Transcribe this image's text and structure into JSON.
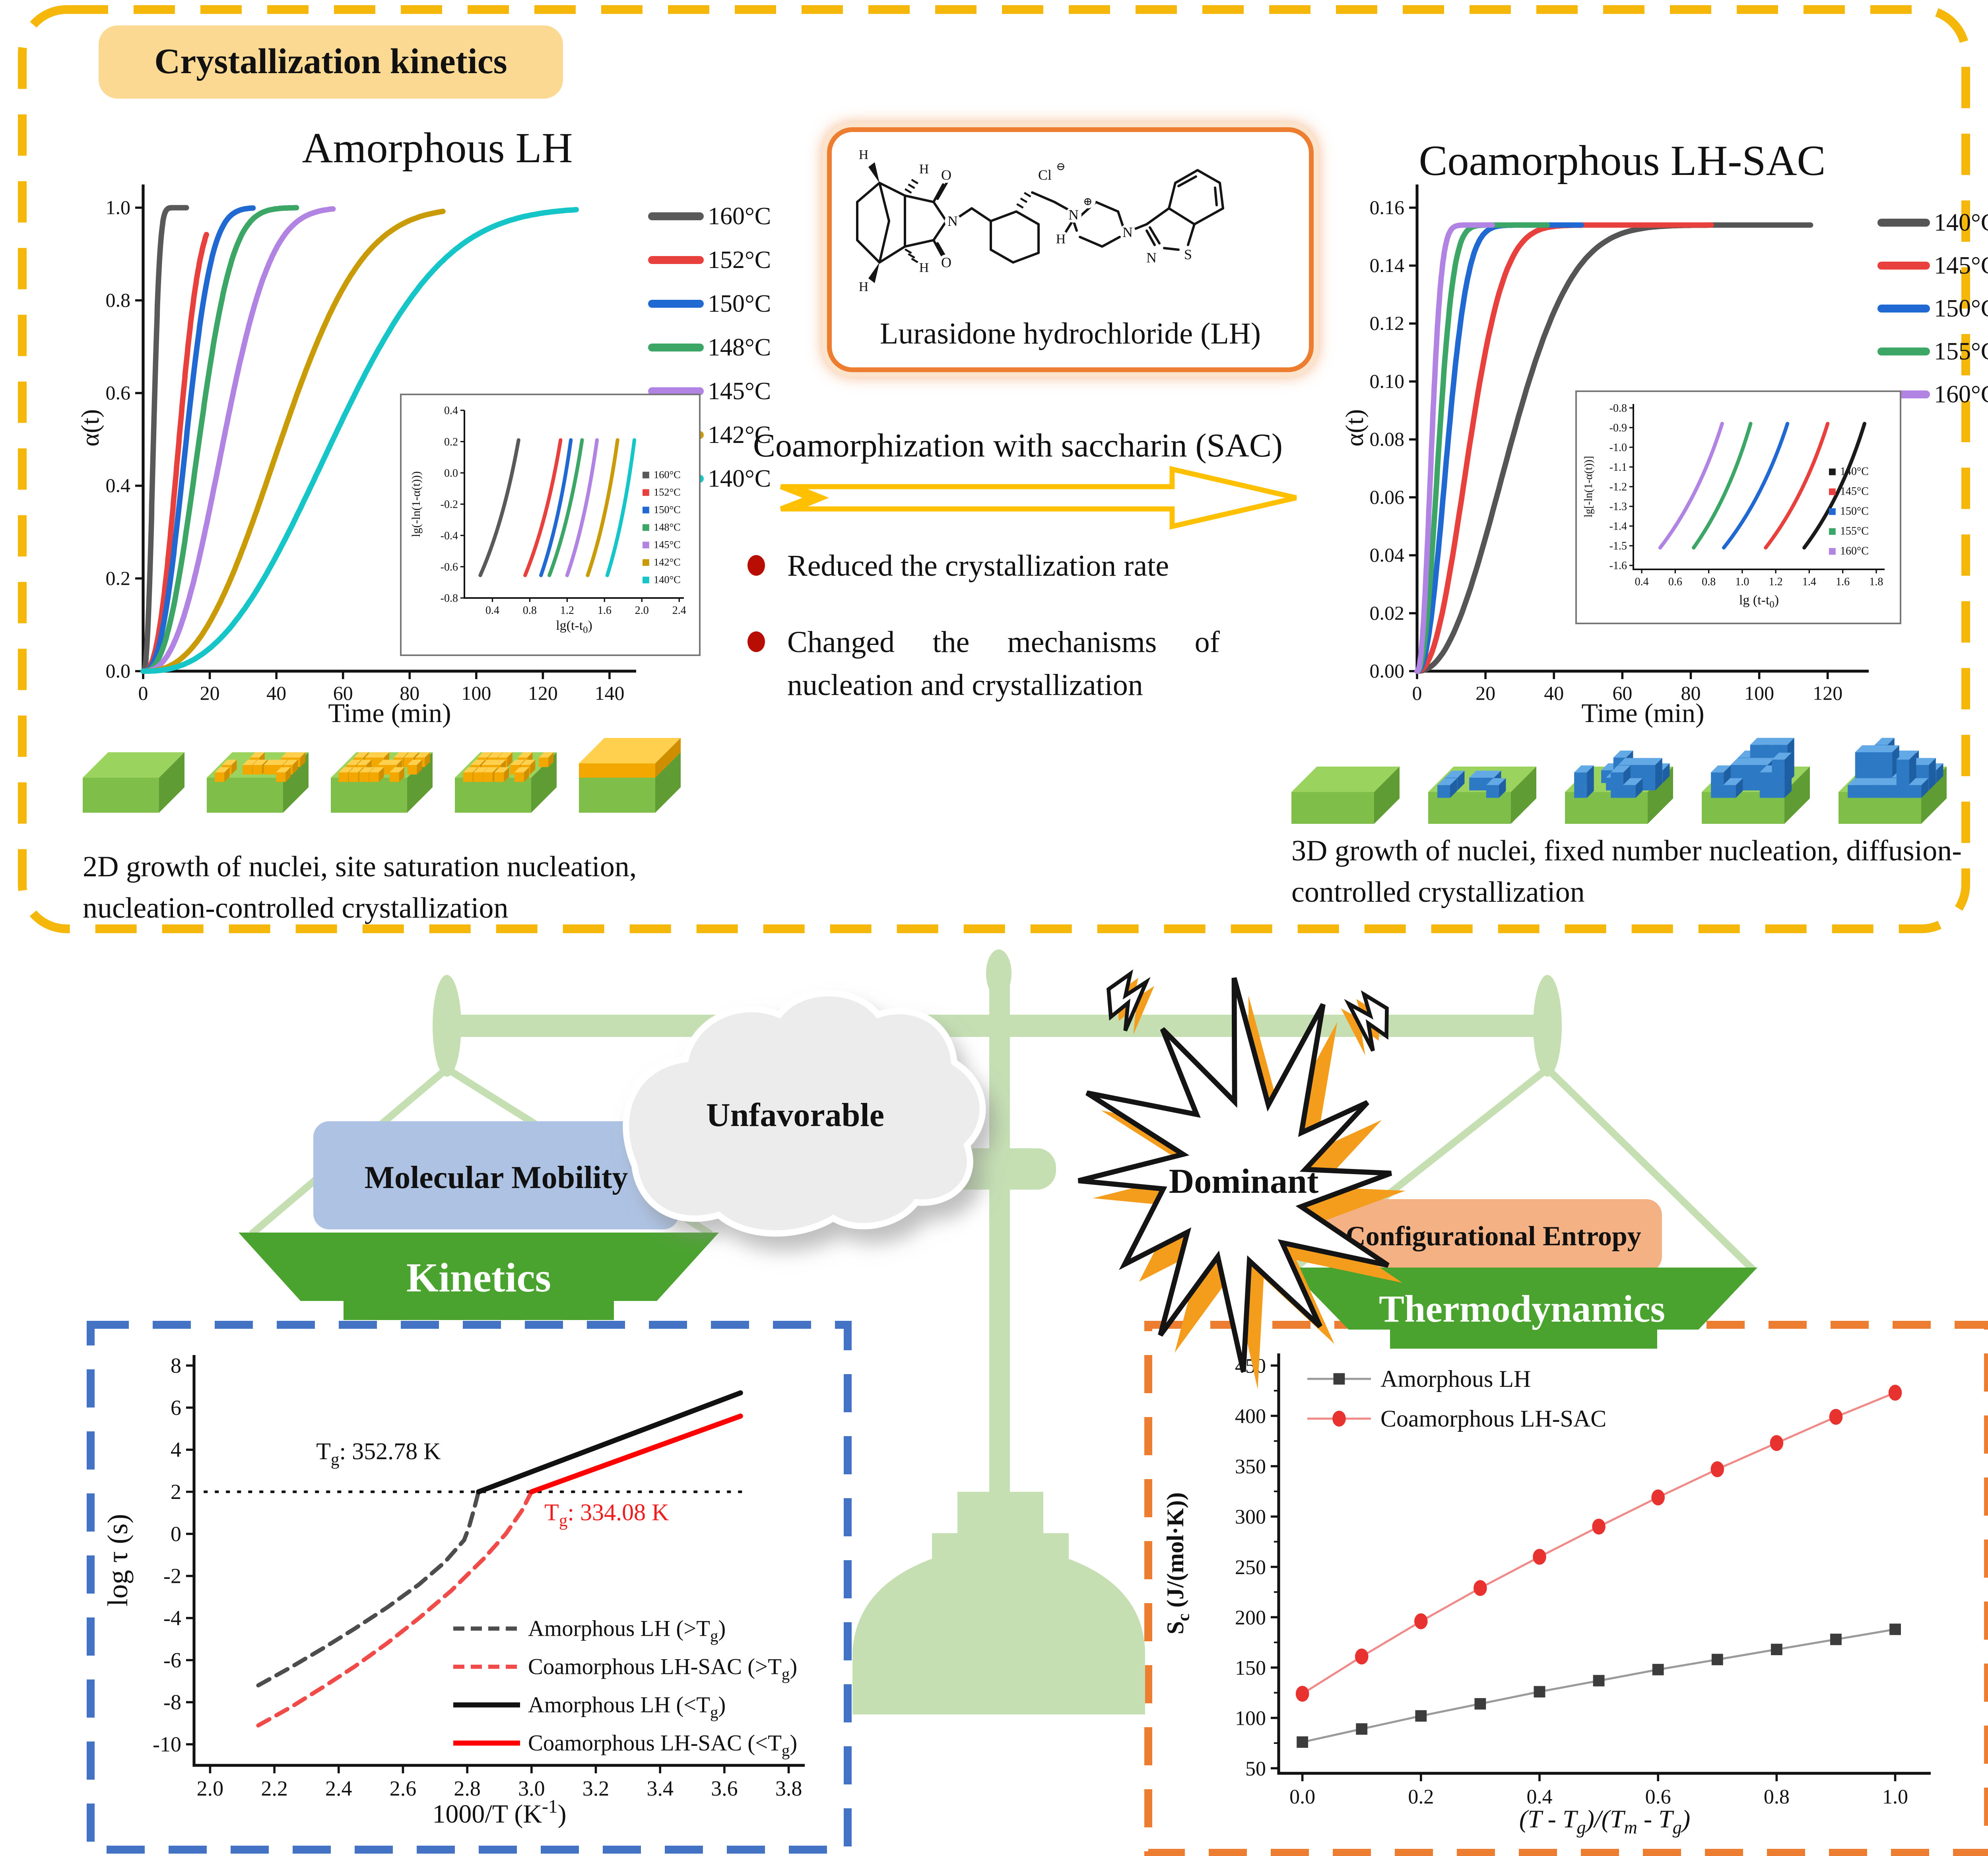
{
  "header": {
    "panel_title": "Crystallization kinetics"
  },
  "left_chart_title": "Amorphous LH",
  "right_chart_title": "Coamorphous LH-SAC",
  "molecule": {
    "caption": "Lurasidone hydrochloride (LH)",
    "atom_labels": {
      "o_top": "O",
      "o_bottom": "O",
      "n_imide": "N",
      "h1": "H",
      "h2": "H",
      "h3": "H",
      "h4": "H",
      "cl": "Cl",
      "cl_charge": "⊖",
      "n_plus": "N",
      "plus_charge": "⊕",
      "h_n": "H",
      "n_pip": "N",
      "n_ring": "N",
      "s_ring": "S"
    }
  },
  "process": {
    "label": "Coamorphization with saccharin (SAC)",
    "bullets": [
      "Reduced the crystallization rate",
      "Changed the mechanisms of nucleation and crystallization"
    ]
  },
  "growth": {
    "left_caption": "2D growth of nuclei, site saturation nucleation, nucleation-controlled crystallization",
    "right_caption": "3D growth of nuclei, fixed number nucleation, diffusion-controlled crystallization"
  },
  "balance": {
    "left_cloud": "Unfavorable",
    "right_burst": "Dominant",
    "left_box": "Molecular Mobility",
    "left_pan": "Kinetics",
    "right_box": "Configurational Entropy",
    "right_pan": "Thermodynamics"
  },
  "colors": {
    "frame_yellow": "#F4B70A",
    "title_bg": "#FBD993",
    "molecule_border": "#ED7D31",
    "arrow": "#FFC000",
    "bullet": "#B80D02",
    "border_blue": "#4472C4",
    "border_orange": "#ED7D31",
    "balance_green": "#C5DFB3",
    "pan_green": "#4AA32F",
    "mobility_bg": "#AEC3E4",
    "entropy_bg": "#F4B183",
    "cloud": "#ECECEC",
    "star_orange": "#F49D1D",
    "slab_green_top": "#9AD45E",
    "cube_yellow": "#F2A800",
    "cube_blue": "#2E79C4"
  },
  "chart_data": [
    {
      "id": "amorphous_alpha",
      "type": "line",
      "title": "Amorphous LH",
      "xlabel": "Time (min)",
      "ylabel": "α(t)",
      "xlim": [
        0,
        148
      ],
      "ylim": [
        0,
        1.05
      ],
      "xticks": [
        0,
        20,
        40,
        60,
        80,
        100,
        120,
        140
      ],
      "yticks": [
        0,
        0.2,
        0.4,
        0.6,
        0.8,
        1.0
      ],
      "xdec": 0,
      "ydec": 1,
      "plateau": 1.0,
      "avrami_n": 2.5,
      "series": [
        {
          "label": "160°C",
          "color": "#595959",
          "tau": 3.6,
          "t_end": 13
        },
        {
          "label": "152°C",
          "color": "#E8413D",
          "tau": 12.5,
          "t_end": 19
        },
        {
          "label": "150°C",
          "color": "#2069D2",
          "tau": 15,
          "t_end": 33
        },
        {
          "label": "148°C",
          "color": "#3BA666",
          "tau": 19.5,
          "t_end": 46
        },
        {
          "label": "145°C",
          "color": "#B183E3",
          "tau": 28,
          "t_end": 57
        },
        {
          "label": "142°C",
          "color": "#C99B06",
          "tau": 48,
          "t_end": 90
        },
        {
          "label": "140°C",
          "color": "#16C5C8",
          "tau": 66,
          "t_end": 130
        }
      ],
      "inset": {
        "xlabel": "lg(t-t_{0})",
        "ylabel": "lg(-ln(1-α(t)))",
        "xlim": [
          0.1,
          2.45
        ],
        "ylim": [
          -0.8,
          0.4
        ],
        "xticks": [
          0.4,
          0.8,
          1.2,
          1.6,
          2.0,
          2.4
        ],
        "yticks": [
          0.4,
          0.2,
          0.0,
          -0.2,
          -0.4,
          -0.6,
          -0.8
        ],
        "y_range": [
          -0.655,
          0.21
        ],
        "lines": [
          {
            "label": "160°C",
            "color": "#595959",
            "x": [
              0.27,
              0.68
            ]
          },
          {
            "label": "152°C",
            "color": "#E8413D",
            "x": [
              0.75,
              1.13
            ]
          },
          {
            "label": "150°C",
            "color": "#2069D2",
            "x": [
              0.92,
              1.24
            ]
          },
          {
            "label": "148°C",
            "color": "#3BA666",
            "x": [
              1.01,
              1.36
            ]
          },
          {
            "label": "145°C",
            "color": "#B183E3",
            "x": [
              1.2,
              1.52
            ]
          },
          {
            "label": "142°C",
            "color": "#C99B06",
            "x": [
              1.42,
              1.74
            ]
          },
          {
            "label": "140°C",
            "color": "#16C5C8",
            "x": [
              1.63,
              1.92
            ]
          }
        ]
      }
    },
    {
      "id": "coamorphous_alpha",
      "type": "line",
      "title": "Coamorphous LH-SAC",
      "xlabel": "Time (min)",
      "ylabel": "α(t)",
      "xlim": [
        0,
        132
      ],
      "ylim": [
        0,
        0.168
      ],
      "xticks": [
        0,
        20,
        40,
        60,
        80,
        100,
        120
      ],
      "yticks": [
        0,
        0.02,
        0.04,
        0.06,
        0.08,
        0.1,
        0.12,
        0.14,
        0.16
      ],
      "xdec": 0,
      "ydec": 2,
      "plateau": 0.154,
      "avrami_n": 2.2,
      "series": [
        {
          "label": "140°C",
          "color": "#555555",
          "tau": 32,
          "t_end": 115
        },
        {
          "label": "145°C",
          "color": "#E8413D",
          "tau": 18,
          "t_end": 86
        },
        {
          "label": "150°C",
          "color": "#2069D2",
          "tau": 10.5,
          "t_end": 48
        },
        {
          "label": "155°C",
          "color": "#3BA666",
          "tau": 7.5,
          "t_end": 38
        },
        {
          "label": "160°C",
          "color": "#B183E3",
          "tau": 5,
          "t_end": 22
        }
      ],
      "inset": {
        "xlabel": "lg (t-t_{0})",
        "ylabel": "lg[-ln(1-α(t))]",
        "xlim": [
          0.35,
          1.85
        ],
        "ylim": [
          -1.62,
          -0.78
        ],
        "xticks": [
          0.4,
          0.6,
          0.8,
          1.0,
          1.2,
          1.4,
          1.6,
          1.8
        ],
        "yticks": [
          -0.8,
          -0.9,
          -1.0,
          -1.1,
          -1.2,
          -1.3,
          -1.4,
          -1.5,
          -1.6
        ],
        "y_range": [
          -1.51,
          -0.88
        ],
        "lines": [
          {
            "label": "160°C",
            "color": "#B183E3",
            "x": [
              0.51,
              0.88
            ]
          },
          {
            "label": "155°C",
            "color": "#3BA666",
            "x": [
              0.71,
              1.05
            ]
          },
          {
            "label": "150°C",
            "color": "#2069D2",
            "x": [
              0.89,
              1.27
            ]
          },
          {
            "label": "145°C",
            "color": "#E8413D",
            "x": [
              1.14,
              1.51
            ]
          },
          {
            "label": "140°C",
            "color": "#1A1A1A",
            "x": [
              1.37,
              1.73
            ]
          }
        ],
        "legend": [
          {
            "label": "140°C",
            "color": "#1A1A1A"
          },
          {
            "label": "145°C",
            "color": "#E8413D"
          },
          {
            "label": "150°C",
            "color": "#2069D2"
          },
          {
            "label": "155°C",
            "color": "#3BA666"
          },
          {
            "label": "160°C",
            "color": "#B183E3"
          }
        ]
      }
    },
    {
      "id": "relaxation",
      "type": "line",
      "xlabel": "1000/T (K^{-1})",
      "ylabel": "log τ (s)",
      "xlim": [
        1.95,
        3.85
      ],
      "ylim": [
        -11,
        8.5
      ],
      "xticks": [
        2.0,
        2.2,
        2.4,
        2.6,
        2.8,
        3.0,
        3.2,
        3.4,
        3.6,
        3.8
      ],
      "yticks": [
        8,
        6,
        4,
        2,
        0,
        -2,
        -4,
        -6,
        -8,
        -10
      ],
      "ref_line": {
        "y": 2,
        "x": [
          1.98,
          3.66
        ]
      },
      "annotations": [
        {
          "text": "T_{g}: 352.78 K",
          "x": 2.33,
          "y": 3.55,
          "color": "#111111"
        },
        {
          "text": "T_{g}: 334.08 K",
          "x": 3.04,
          "y": 0.65,
          "color": "#EE1C1C"
        }
      ],
      "series": [
        {
          "label": "Amorphous LH (>T_{g})",
          "color": "#4D4D4D",
          "style": "dashed",
          "points": [
            [
              2.15,
              -7.2
            ],
            [
              2.25,
              -6.35
            ],
            [
              2.35,
              -5.45
            ],
            [
              2.45,
              -4.5
            ],
            [
              2.55,
              -3.5
            ],
            [
              2.65,
              -2.4
            ],
            [
              2.73,
              -1.35
            ],
            [
              2.79,
              -0.3
            ],
            [
              2.805,
              0.3
            ],
            [
              2.82,
              1.1
            ],
            [
              2.835,
              2.0
            ]
          ]
        },
        {
          "label": "Coamorphous LH-SAC (>T_{g})",
          "color": "#F04A49",
          "style": "dashed",
          "points": [
            [
              2.15,
              -9.1
            ],
            [
              2.25,
              -8.25
            ],
            [
              2.35,
              -7.3
            ],
            [
              2.45,
              -6.3
            ],
            [
              2.55,
              -5.2
            ],
            [
              2.65,
              -4.0
            ],
            [
              2.75,
              -2.7
            ],
            [
              2.85,
              -1.2
            ],
            [
              2.92,
              0.0
            ],
            [
              2.97,
              1.1
            ],
            [
              3.0,
              2.0
            ]
          ]
        },
        {
          "label": "Amorphous LH (<T_{g})",
          "color": "#111111",
          "style": "solid",
          "points": [
            [
              2.835,
              2.0
            ],
            [
              3.65,
              6.7
            ]
          ]
        },
        {
          "label": "Coamorphous LH-SAC (<T_{g})",
          "color": "#FF0000",
          "style": "solid",
          "points": [
            [
              3.0,
              2.0
            ],
            [
              3.65,
              5.6
            ]
          ]
        }
      ]
    },
    {
      "id": "entropy",
      "type": "scatter-line",
      "xlabel": "(T - T_{g})/(T_{m} - T_{g})",
      "ylabel": "S_{c} (J/(mol·K))",
      "xlim": [
        -0.04,
        1.06
      ],
      "ylim": [
        45,
        462
      ],
      "xticks": [
        0.0,
        0.2,
        0.4,
        0.6,
        0.8,
        1.0
      ],
      "yticks": [
        50,
        100,
        150,
        200,
        250,
        300,
        350,
        400,
        450
      ],
      "x": [
        0,
        0.1,
        0.2,
        0.3,
        0.4,
        0.5,
        0.6,
        0.7,
        0.8,
        0.9,
        1.0
      ],
      "series": [
        {
          "label": "Amorphous LH",
          "color": "#3C3C3C",
          "line_color": "#9A9A9A",
          "marker": "square",
          "values": [
            76,
            89,
            102,
            114,
            126,
            137,
            148,
            158,
            168,
            178,
            188
          ]
        },
        {
          "label": "Coamorphous LH-SAC",
          "color": "#E8322F",
          "line_color": "#F08A88",
          "marker": "circle",
          "values": [
            124,
            161,
            196,
            229,
            260,
            290,
            319,
            347,
            373,
            399,
            423
          ]
        }
      ]
    }
  ]
}
